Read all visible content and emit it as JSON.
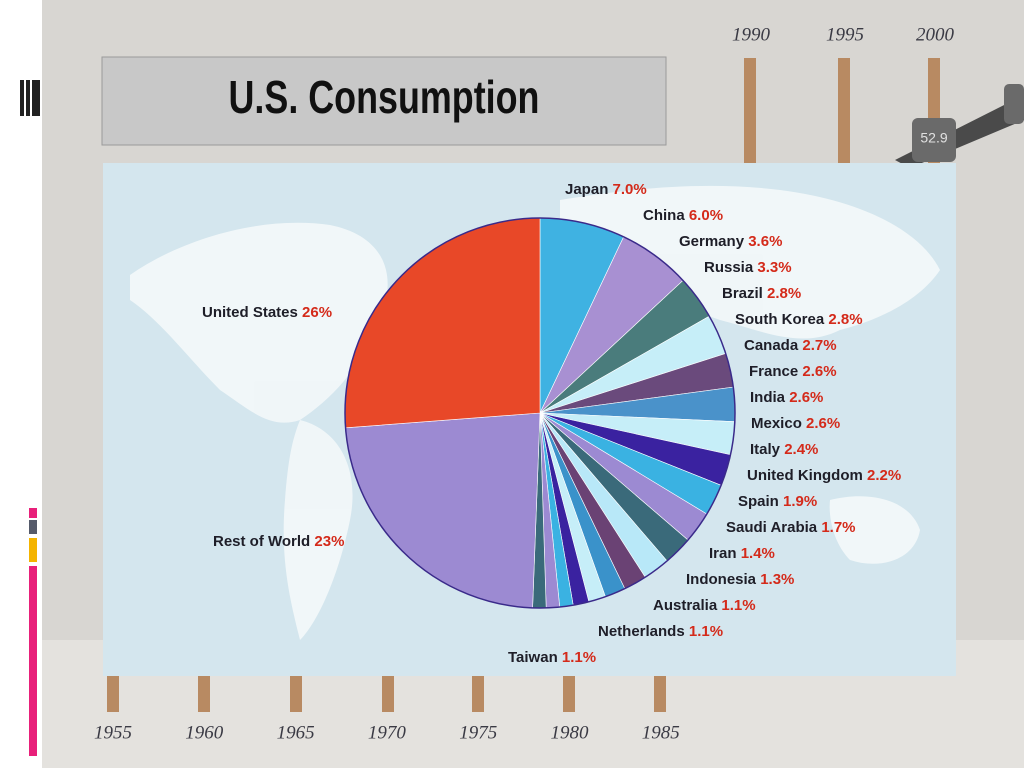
{
  "title": "U.S. Consumption",
  "background": {
    "years_top": [
      "1990",
      "1995",
      "2000"
    ],
    "years_bottom": [
      "1955",
      "1960",
      "1965",
      "1970",
      "1975",
      "1980",
      "1985"
    ],
    "barrel_label": "52.9"
  },
  "chart_data": {
    "type": "pie",
    "categories": [
      "Japan",
      "China",
      "Germany",
      "Russia",
      "Brazil",
      "South Korea",
      "Canada",
      "France",
      "India",
      "Mexico",
      "Italy",
      "United Kingdom",
      "Spain",
      "Saudi Arabia",
      "Iran",
      "Indonesia",
      "Australia",
      "Netherlands",
      "Taiwan",
      "Rest of World",
      "United States"
    ],
    "values": [
      7.0,
      6.0,
      3.6,
      3.3,
      2.8,
      2.8,
      2.7,
      2.6,
      2.6,
      2.6,
      2.4,
      2.2,
      1.9,
      1.7,
      1.4,
      1.3,
      1.1,
      1.1,
      1.1,
      23,
      26
    ],
    "value_labels": [
      "7.0%",
      "6.0%",
      "3.6%",
      "3.3%",
      "2.8%",
      "2.8%",
      "2.7%",
      "2.6%",
      "2.6%",
      "2.6%",
      "2.4%",
      "2.2%",
      "1.9%",
      "1.7%",
      "1.4%",
      "1.3%",
      "1.1%",
      "1.1%",
      "1.1%",
      "23%",
      "26%"
    ],
    "colors": [
      "#3fb2e2",
      "#a890d2",
      "#4a7c7c",
      "#c6eef8",
      "#6a4a7c",
      "#4a92ca",
      "#c6eef8",
      "#3a22a0",
      "#3ab2e2",
      "#9c8ad2",
      "#3a6a7a",
      "#b8e8f8",
      "#6a4274",
      "#3a92ca",
      "#c6eef8",
      "#3a22a0",
      "#3ab2e2",
      "#9c8ad2",
      "#3a6a7a",
      "#9c8ad2",
      "#e84828"
    ]
  }
}
